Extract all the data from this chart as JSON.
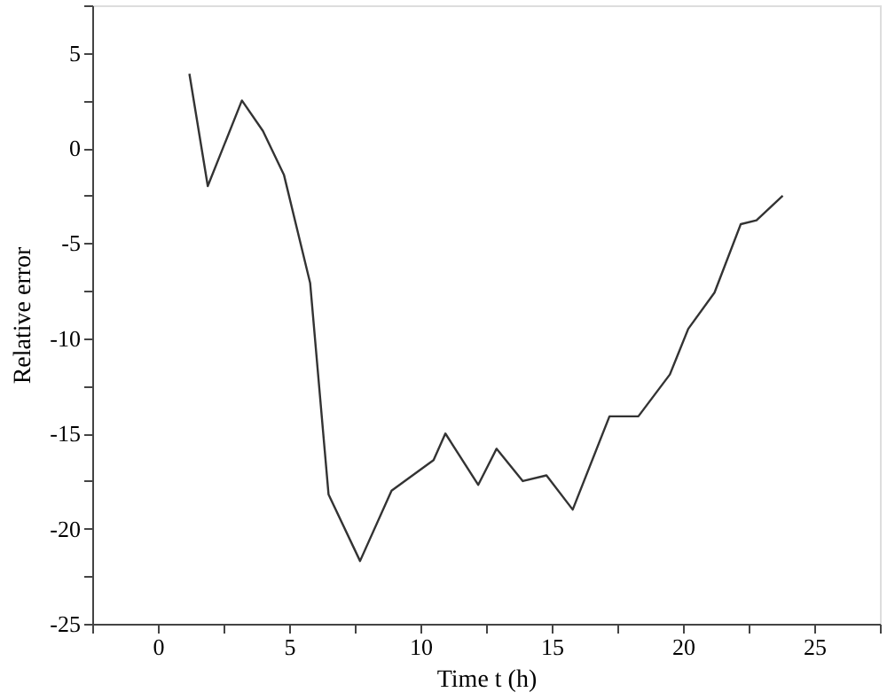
{
  "chart_data": {
    "type": "line",
    "xlabel": "Time t (h)",
    "ylabel": "Relative error",
    "x": [
      1.2,
      1.9,
      3.2,
      4.0,
      4.8,
      5.8,
      6.5,
      7.7,
      8.9,
      10.5,
      10.95,
      12.2,
      12.9,
      13.9,
      14.8,
      15.8,
      17.2,
      18.3,
      19.5,
      20.2,
      21.2,
      22.2,
      22.8,
      23.8
    ],
    "series": [
      {
        "color": "#333333",
        "values": [
          3.9,
          -2.0,
          2.5,
          0.9,
          -1.4,
          -7.1,
          -18.2,
          -21.7,
          -18.0,
          -16.4,
          -15.0,
          -17.7,
          -15.8,
          -17.5,
          -17.2,
          -19.0,
          -14.1,
          -14.1,
          -11.9,
          -9.5,
          -7.6,
          -4.0,
          -3.8,
          -2.5
        ]
      }
    ],
    "xlim": [
      -2.5,
      27.5
    ],
    "ylim": [
      -25,
      7.5
    ],
    "xticks": [
      {
        "value": -2.5,
        "label": null
      },
      0,
      {
        "value": 2.5,
        "label": null
      },
      5,
      {
        "value": 7.5,
        "label": null
      },
      10,
      {
        "value": 12.5,
        "label": null
      },
      15,
      {
        "value": 17.5,
        "label": null
      },
      20,
      {
        "value": 22.5,
        "label": null
      },
      25,
      {
        "value": 27.5,
        "label": null
      }
    ],
    "yticks": [
      -25,
      {
        "value": -22.5,
        "label": null
      },
      -20,
      {
        "value": -17.5,
        "label": null
      },
      -15,
      {
        "value": -12.5,
        "label": null
      },
      -10,
      {
        "value": -7.5,
        "label": null
      },
      -5,
      {
        "value": -2.5,
        "label": null
      },
      0,
      {
        "value": 2.5,
        "label": null
      },
      5,
      {
        "value": 7.5,
        "label": null
      }
    ],
    "grid": false,
    "marker": "none",
    "line_style": "solid"
  }
}
